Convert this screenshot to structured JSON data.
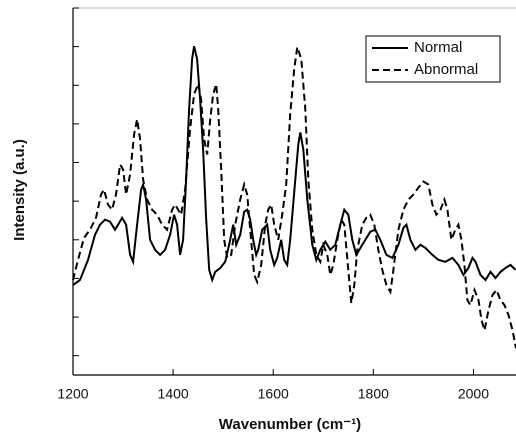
{
  "chart_data": {
    "type": "line",
    "xlabel": "Wavenumber (cm⁻¹)",
    "ylabel": "Intensity (a.u.)",
    "xlim": [
      1200,
      2085
    ],
    "xticks": [
      1200,
      1400,
      1600,
      1800,
      2000
    ],
    "ylim": [
      -0.5,
      9
    ],
    "yticks": [
      0,
      1,
      2,
      3,
      4,
      5,
      6,
      7,
      8,
      9
    ],
    "legend": "upper right",
    "series": [
      {
        "name": "Normal",
        "color": "#000000",
        "linestyle": "solid",
        "x": [
          1200,
          1214,
          1230,
          1244,
          1254,
          1264,
          1274,
          1284,
          1290,
          1298,
          1306,
          1314,
          1320,
          1328,
          1336,
          1340,
          1346,
          1354,
          1364,
          1374,
          1384,
          1394,
          1402,
          1408,
          1414,
          1420,
          1426,
          1432,
          1438,
          1442,
          1448,
          1454,
          1460,
          1466,
          1472,
          1478,
          1484,
          1494,
          1504,
          1514,
          1520,
          1526,
          1534,
          1542,
          1548,
          1554,
          1560,
          1566,
          1570,
          1578,
          1588,
          1594,
          1602,
          1608,
          1616,
          1622,
          1628,
          1634,
          1644,
          1650,
          1654,
          1660,
          1668,
          1678,
          1686,
          1694,
          1704,
          1714,
          1724,
          1734,
          1742,
          1750,
          1758,
          1766,
          1778,
          1794,
          1804,
          1814,
          1826,
          1838,
          1850,
          1860,
          1866,
          1874,
          1884,
          1894,
          1904,
          1918,
          1930,
          1944,
          1958,
          1970,
          1980,
          1990,
          1998,
          2004,
          2014,
          2024,
          2034,
          2044,
          2054,
          2064,
          2074,
          2084
        ],
        "values": [
          1.83,
          1.96,
          2.48,
          3.13,
          3.39,
          3.52,
          3.47,
          3.26,
          3.39,
          3.57,
          3.39,
          2.61,
          2.43,
          3.39,
          4.3,
          4.43,
          4.04,
          3.0,
          2.74,
          2.61,
          2.74,
          3.13,
          3.65,
          3.39,
          2.61,
          3.0,
          4.56,
          6.38,
          7.68,
          8.01,
          7.68,
          6.64,
          5.34,
          3.52,
          2.22,
          1.96,
          2.17,
          2.27,
          2.43,
          3.0,
          3.39,
          2.87,
          3.13,
          3.73,
          3.78,
          3.52,
          3.0,
          2.61,
          2.74,
          3.26,
          3.39,
          2.74,
          2.35,
          2.53,
          3.0,
          2.48,
          2.35,
          3.0,
          4.56,
          5.47,
          5.78,
          5.34,
          4.04,
          2.87,
          2.48,
          2.74,
          2.95,
          2.74,
          2.87,
          3.39,
          3.78,
          3.65,
          3.0,
          2.61,
          2.87,
          3.21,
          3.26,
          3.0,
          2.61,
          2.53,
          2.87,
          3.31,
          3.39,
          3.0,
          2.74,
          2.87,
          2.79,
          2.61,
          2.48,
          2.43,
          2.53,
          2.35,
          2.09,
          2.27,
          2.53,
          2.43,
          2.09,
          1.96,
          2.17,
          2.01,
          2.17,
          2.27,
          2.35,
          2.22
        ]
      },
      {
        "name": "Abnormal",
        "color": "#000000",
        "linestyle": "dashed",
        "x": [
          1200,
          1210,
          1222,
          1234,
          1246,
          1256,
          1262,
          1270,
          1278,
          1286,
          1294,
          1300,
          1306,
          1314,
          1322,
          1328,
          1334,
          1340,
          1348,
          1358,
          1368,
          1378,
          1388,
          1398,
          1404,
          1410,
          1416,
          1424,
          1434,
          1442,
          1450,
          1456,
          1462,
          1468,
          1474,
          1480,
          1486,
          1490,
          1496,
          1502,
          1508,
          1516,
          1524,
          1534,
          1542,
          1548,
          1554,
          1562,
          1568,
          1576,
          1584,
          1590,
          1596,
          1602,
          1610,
          1618,
          1626,
          1634,
          1642,
          1648,
          1656,
          1664,
          1670,
          1678,
          1686,
          1694,
          1700,
          1708,
          1714,
          1720,
          1728,
          1736,
          1742,
          1750,
          1756,
          1762,
          1768,
          1778,
          1786,
          1794,
          1802,
          1810,
          1818,
          1826,
          1834,
          1840,
          1850,
          1860,
          1870,
          1880,
          1890,
          1900,
          1910,
          1918,
          1926,
          1934,
          1942,
          1948,
          1956,
          1964,
          1970,
          1976,
          1982,
          1988,
          1994,
          2002,
          2010,
          2016,
          2022,
          2030,
          2038,
          2046,
          2054,
          2062,
          2070,
          2078,
          2085
        ],
        "values": [
          1.96,
          2.48,
          3.05,
          3.26,
          3.57,
          4.17,
          4.3,
          3.91,
          3.78,
          4.17,
          4.95,
          4.82,
          4.17,
          4.69,
          5.73,
          6.12,
          5.6,
          4.56,
          4.04,
          3.78,
          3.65,
          3.39,
          3.26,
          3.78,
          3.91,
          3.78,
          3.65,
          4.3,
          5.86,
          6.77,
          7.03,
          6.64,
          5.6,
          5.21,
          6.12,
          6.77,
          7.03,
          6.38,
          4.82,
          3.0,
          2.53,
          2.61,
          3.39,
          4.04,
          4.43,
          4.17,
          3.26,
          2.09,
          1.91,
          2.35,
          3.39,
          3.78,
          3.91,
          3.39,
          3.0,
          3.65,
          4.43,
          6.25,
          7.42,
          7.99,
          7.68,
          6.38,
          4.56,
          3.26,
          2.61,
          2.43,
          2.87,
          2.61,
          2.09,
          2.35,
          3.0,
          3.52,
          3.39,
          2.22,
          1.36,
          1.83,
          2.74,
          3.39,
          3.57,
          3.65,
          3.39,
          2.74,
          2.22,
          1.83,
          1.65,
          2.22,
          3.26,
          3.78,
          4.04,
          4.17,
          4.35,
          4.51,
          4.43,
          3.91,
          3.65,
          3.78,
          4.04,
          3.78,
          3.0,
          3.26,
          3.39,
          3.0,
          2.35,
          1.44,
          1.31,
          1.7,
          1.44,
          0.92,
          0.66,
          1.18,
          1.57,
          1.7,
          1.44,
          1.31,
          1.05,
          0.66,
          0.19
        ]
      }
    ]
  }
}
